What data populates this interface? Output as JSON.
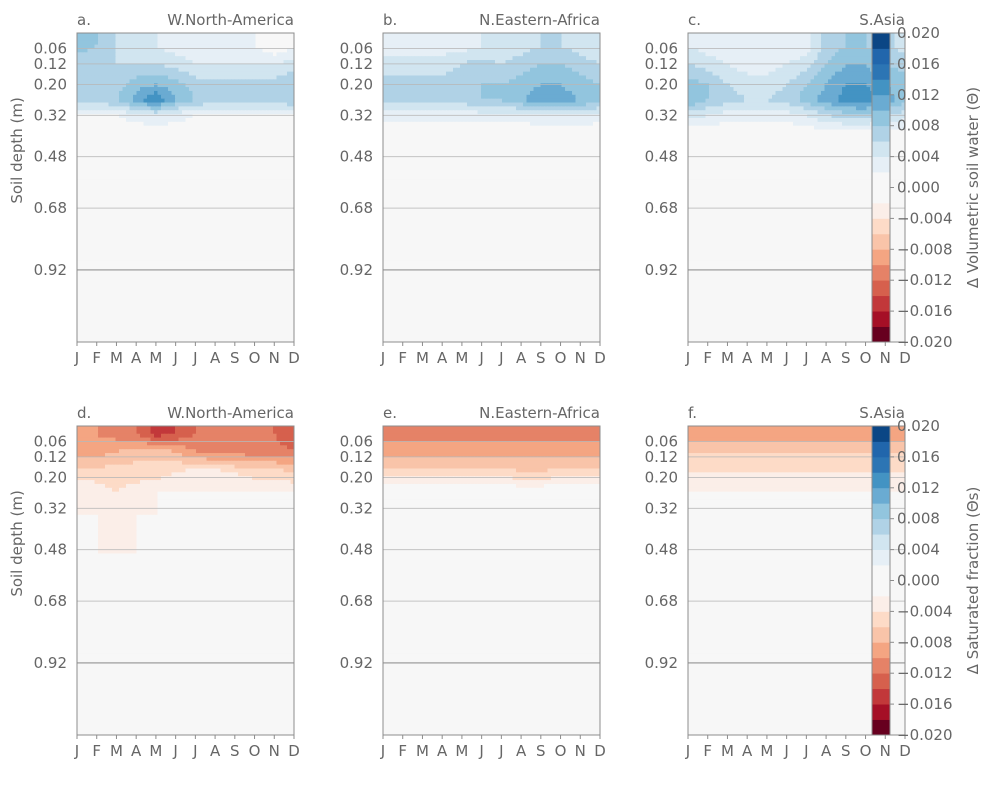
{
  "figure": {
    "months": [
      "J",
      "F",
      "M",
      "A",
      "M",
      "J",
      "J",
      "A",
      "S",
      "O",
      "N",
      "D"
    ],
    "depth_ticks": [
      0.06,
      0.12,
      0.2,
      0.32,
      0.48,
      0.68,
      0.92
    ],
    "depth_tick_labels": [
      "0.06",
      "0.12",
      "0.20",
      "0.32",
      "0.48",
      "0.68",
      "0.92"
    ],
    "ylabel": "Soil depth (m)",
    "colorbars": [
      {
        "label": "Δ Volumetric soil water (Θ)",
        "range": [
          -0.02,
          0.02
        ],
        "levels": [
          -0.02,
          -0.018,
          -0.016,
          -0.014,
          -0.012,
          -0.01,
          -0.008,
          -0.006,
          -0.004,
          -0.002,
          0,
          0.002,
          0.004,
          0.006,
          0.008,
          0.01,
          0.012,
          0.014,
          0.016,
          0.018,
          0.02
        ],
        "tick_values": [
          -0.02,
          -0.016,
          -0.012,
          -0.008,
          -0.004,
          0.0,
          0.004,
          0.008,
          0.012,
          0.016,
          0.02
        ],
        "tick_labels": [
          "−0.020",
          "−0.016",
          "−0.012",
          "−0.008",
          "−0.004",
          "0.000",
          "0.004",
          "0.008",
          "0.012",
          "0.016",
          "0.020"
        ]
      },
      {
        "label": "Δ Saturated fraction (Θs)",
        "range": [
          -0.02,
          0.02
        ],
        "levels": [
          -0.02,
          -0.018,
          -0.016,
          -0.014,
          -0.012,
          -0.01,
          -0.008,
          -0.006,
          -0.004,
          -0.002,
          0,
          0.002,
          0.004,
          0.006,
          0.008,
          0.01,
          0.012,
          0.014,
          0.016,
          0.018,
          0.02
        ],
        "tick_values": [
          -0.02,
          -0.016,
          -0.012,
          -0.008,
          -0.004,
          0.0,
          0.004,
          0.008,
          0.012,
          0.016,
          0.02
        ],
        "tick_labels": [
          "−0.020",
          "−0.016",
          "−0.012",
          "−0.008",
          "−0.004",
          "0.000",
          "0.004",
          "0.008",
          "0.012",
          "0.016",
          "0.020"
        ]
      }
    ],
    "colors": [
      "#67001f",
      "#a50f26",
      "#c2383a",
      "#d6604d",
      "#e58267",
      "#f4a582",
      "#f9c4a9",
      "#fddbc7",
      "#fbeee8",
      "#f7f7f7",
      "#f7f7f7",
      "#e6eff6",
      "#d1e5f0",
      "#b0d2e6",
      "#92c5de",
      "#6aabd2",
      "#4393c3",
      "#2c75b4",
      "#2166ac",
      "#0b4685"
    ]
  },
  "chart_data": [
    {
      "type": "heatmap",
      "panel": "a.",
      "region": "W.North-America",
      "variable": "Δ Volumetric soil water (Θ)",
      "x": [
        "J",
        "F",
        "M",
        "A",
        "M",
        "J",
        "J",
        "A",
        "S",
        "O",
        "N",
        "D"
      ],
      "y": [
        0.05,
        0.12,
        0.2,
        0.26,
        0.32,
        0.4,
        0.6,
        0.92,
        1.2
      ],
      "z": [
        [
          0.009,
          0.008,
          0.006,
          0.004,
          0.004,
          0.003,
          0.003,
          0.003,
          0.003,
          0.002,
          0.0,
          0.002
        ],
        [
          0.007,
          0.006,
          0.006,
          0.006,
          0.006,
          0.005,
          0.004,
          0.004,
          0.004,
          0.004,
          0.004,
          0.005
        ],
        [
          0.007,
          0.007,
          0.007,
          0.009,
          0.01,
          0.009,
          0.007,
          0.007,
          0.007,
          0.007,
          0.007,
          0.008
        ],
        [
          0.007,
          0.007,
          0.008,
          0.011,
          0.014,
          0.01,
          0.008,
          0.007,
          0.007,
          0.007,
          0.007,
          0.008
        ],
        [
          0.002,
          0.002,
          0.002,
          0.003,
          0.004,
          0.003,
          0.002,
          0.002,
          0.002,
          0.002,
          0.002,
          0.002
        ],
        [
          0.0,
          0.0,
          0.0,
          0.0,
          0.0,
          0.0,
          0.0,
          0.0,
          0.0,
          0.0,
          0.0,
          0.0
        ],
        [
          0.0,
          0.0,
          0.0,
          0.0,
          0.0,
          0.0,
          0.0,
          0.0,
          0.0,
          0.0,
          0.0,
          0.0
        ],
        [
          0.0,
          0.0,
          0.0,
          0.0,
          0.0,
          0.0,
          0.0,
          0.0,
          0.0,
          0.0,
          0.0,
          0.0
        ],
        [
          0.0,
          0.0,
          0.0,
          0.0,
          0.0,
          0.0,
          0.0,
          0.0,
          0.0,
          0.0,
          0.0,
          0.0
        ]
      ]
    },
    {
      "type": "heatmap",
      "panel": "b.",
      "region": "N.Eastern-Africa",
      "variable": "Δ Volumetric soil water (Θ)",
      "x": [
        "J",
        "F",
        "M",
        "A",
        "M",
        "J",
        "J",
        "A",
        "S",
        "O",
        "N",
        "D"
      ],
      "y": [
        0.05,
        0.12,
        0.2,
        0.26,
        0.32,
        0.4,
        0.6,
        0.92,
        1.2
      ],
      "z": [
        [
          0.003,
          0.003,
          0.003,
          0.003,
          0.003,
          0.004,
          0.004,
          0.005,
          0.006,
          0.006,
          0.005,
          0.004
        ],
        [
          0.005,
          0.005,
          0.005,
          0.005,
          0.006,
          0.007,
          0.006,
          0.007,
          0.008,
          0.008,
          0.007,
          0.006
        ],
        [
          0.007,
          0.007,
          0.007,
          0.007,
          0.007,
          0.008,
          0.008,
          0.009,
          0.01,
          0.01,
          0.009,
          0.008
        ],
        [
          0.007,
          0.007,
          0.007,
          0.007,
          0.007,
          0.008,
          0.008,
          0.01,
          0.011,
          0.011,
          0.01,
          0.009
        ],
        [
          0.003,
          0.003,
          0.003,
          0.003,
          0.003,
          0.003,
          0.003,
          0.003,
          0.004,
          0.004,
          0.004,
          0.003
        ],
        [
          0.0,
          0.0,
          0.0,
          0.0,
          0.0,
          0.0,
          0.0,
          0.0,
          0.0,
          0.0,
          0.0,
          0.0
        ],
        [
          0.0,
          0.0,
          0.0,
          0.0,
          0.0,
          0.0,
          0.0,
          0.0,
          0.0,
          0.0,
          0.0,
          0.0
        ],
        [
          0.0,
          0.0,
          0.0,
          0.0,
          0.0,
          0.0,
          0.0,
          0.0,
          0.0,
          0.0,
          0.0,
          0.0
        ],
        [
          0.0,
          0.0,
          0.0,
          0.0,
          0.0,
          0.0,
          0.0,
          0.0,
          0.0,
          0.0,
          0.0,
          0.0
        ]
      ]
    },
    {
      "type": "heatmap",
      "panel": "c.",
      "region": "S.Asia",
      "variable": "Δ Volumetric soil water (Θ)",
      "x": [
        "J",
        "F",
        "M",
        "A",
        "M",
        "J",
        "J",
        "A",
        "S",
        "O",
        "N",
        "D"
      ],
      "y": [
        0.05,
        0.12,
        0.2,
        0.26,
        0.32,
        0.4,
        0.6,
        0.92,
        1.2
      ],
      "z": [
        [
          0.004,
          0.003,
          0.002,
          0.002,
          0.002,
          0.002,
          0.003,
          0.007,
          0.008,
          0.008,
          0.007,
          0.005
        ],
        [
          0.006,
          0.005,
          0.004,
          0.003,
          0.003,
          0.004,
          0.005,
          0.008,
          0.01,
          0.01,
          0.008,
          0.007
        ],
        [
          0.009,
          0.008,
          0.006,
          0.005,
          0.005,
          0.006,
          0.008,
          0.01,
          0.012,
          0.012,
          0.01,
          0.009
        ],
        [
          0.01,
          0.008,
          0.007,
          0.006,
          0.006,
          0.007,
          0.009,
          0.011,
          0.013,
          0.014,
          0.011,
          0.009
        ],
        [
          0.005,
          0.004,
          0.003,
          0.003,
          0.003,
          0.003,
          0.004,
          0.006,
          0.007,
          0.007,
          0.006,
          0.005
        ],
        [
          0.0,
          0.0,
          0.0,
          0.0,
          0.0,
          0.0,
          0.0,
          0.0,
          0.0,
          0.0,
          0.0,
          0.0
        ],
        [
          0.0,
          0.0,
          0.0,
          0.0,
          0.0,
          0.0,
          0.0,
          0.0,
          0.0,
          0.0,
          0.0,
          0.0
        ],
        [
          0.0,
          0.0,
          0.0,
          0.0,
          0.0,
          0.0,
          0.0,
          0.0,
          0.0,
          0.0,
          0.0,
          0.0
        ],
        [
          0.0,
          0.0,
          0.0,
          0.0,
          0.0,
          0.0,
          0.0,
          0.0,
          0.0,
          0.0,
          0.0,
          0.0
        ]
      ]
    },
    {
      "type": "heatmap",
      "panel": "d.",
      "region": "W.North-America",
      "variable": "Δ Saturated fraction (Θs)",
      "x": [
        "J",
        "F",
        "M",
        "A",
        "M",
        "J",
        "J",
        "A",
        "S",
        "O",
        "N",
        "D"
      ],
      "y": [
        0.03,
        0.1,
        0.18,
        0.26,
        0.34,
        0.5,
        0.92,
        1.2
      ],
      "z": [
        [
          -0.01,
          -0.01,
          -0.011,
          -0.012,
          -0.015,
          -0.014,
          -0.012,
          -0.011,
          -0.01,
          -0.011,
          -0.012,
          -0.014
        ],
        [
          -0.009,
          -0.009,
          -0.008,
          -0.007,
          -0.007,
          -0.008,
          -0.01,
          -0.011,
          -0.011,
          -0.011,
          -0.011,
          -0.012
        ],
        [
          -0.005,
          -0.005,
          -0.005,
          -0.005,
          -0.005,
          -0.004,
          -0.003,
          -0.003,
          -0.004,
          -0.005,
          -0.005,
          -0.006
        ],
        [
          -0.002,
          -0.003,
          -0.004,
          -0.003,
          -0.002,
          -0.002,
          -0.002,
          -0.002,
          -0.002,
          -0.002,
          -0.002,
          -0.002
        ],
        [
          -0.002,
          -0.002,
          -0.003,
          -0.002,
          -0.002,
          -0.002,
          -0.002,
          -0.002,
          -0.002,
          -0.002,
          -0.002,
          -0.002
        ],
        [
          -0.002,
          -0.002,
          -0.002,
          -0.002,
          -0.002,
          -0.002,
          -0.002,
          -0.002,
          -0.002,
          -0.002,
          -0.002,
          -0.002
        ],
        [
          -0.002,
          -0.002,
          -0.002,
          -0.002,
          -0.002,
          -0.002,
          -0.002,
          -0.002,
          -0.002,
          -0.002,
          -0.002,
          -0.002
        ],
        [
          -0.002,
          -0.002,
          -0.002,
          -0.002,
          -0.002,
          -0.002,
          -0.002,
          -0.002,
          -0.002,
          -0.002,
          -0.002,
          -0.002
        ]
      ]
    },
    {
      "type": "heatmap",
      "panel": "e.",
      "region": "N.Eastern-Africa",
      "variable": "Δ Saturated fraction (Θs)",
      "x": [
        "J",
        "F",
        "M",
        "A",
        "M",
        "J",
        "J",
        "A",
        "S",
        "O",
        "N",
        "D"
      ],
      "y": [
        0.03,
        0.1,
        0.18,
        0.26,
        0.34,
        0.5,
        0.92,
        1.2
      ],
      "z": [
        [
          -0.011,
          -0.011,
          -0.011,
          -0.011,
          -0.011,
          -0.011,
          -0.011,
          -0.011,
          -0.011,
          -0.011,
          -0.011,
          -0.011
        ],
        [
          -0.009,
          -0.009,
          -0.009,
          -0.009,
          -0.009,
          -0.009,
          -0.009,
          -0.009,
          -0.009,
          -0.009,
          -0.009,
          -0.009
        ],
        [
          -0.005,
          -0.005,
          -0.005,
          -0.005,
          -0.005,
          -0.005,
          -0.005,
          -0.006,
          -0.006,
          -0.005,
          -0.005,
          -0.005
        ],
        [
          0.0,
          0.0,
          0.0,
          0.0,
          0.0,
          0.0,
          0.0,
          0.0,
          0.0,
          0.0,
          0.0,
          0.0
        ],
        [
          0.0,
          0.0,
          0.0,
          0.0,
          0.0,
          0.0,
          0.0,
          0.0,
          0.0,
          0.0,
          0.0,
          0.0
        ],
        [
          0.0,
          0.0,
          0.0,
          0.0,
          0.0,
          0.0,
          0.0,
          0.0,
          0.0,
          0.0,
          0.0,
          0.0
        ],
        [
          0.0,
          0.0,
          0.0,
          0.0,
          0.0,
          0.0,
          0.0,
          0.0,
          0.0,
          0.0,
          0.0,
          0.0
        ],
        [
          0.0,
          0.0,
          0.0,
          0.0,
          0.0,
          0.0,
          0.0,
          0.0,
          0.0,
          0.0,
          0.0,
          0.0
        ]
      ]
    },
    {
      "type": "heatmap",
      "panel": "f.",
      "region": "S.Asia",
      "variable": "Δ Saturated fraction (Θs)",
      "x": [
        "J",
        "F",
        "M",
        "A",
        "M",
        "J",
        "J",
        "A",
        "S",
        "O",
        "N",
        "D"
      ],
      "y": [
        0.03,
        0.1,
        0.18,
        0.26,
        0.34,
        0.5,
        0.92,
        1.2
      ],
      "z": [
        [
          -0.01,
          -0.009,
          -0.009,
          -0.009,
          -0.009,
          -0.009,
          -0.009,
          -0.009,
          -0.01,
          -0.01,
          -0.009,
          -0.009
        ],
        [
          -0.006,
          -0.006,
          -0.006,
          -0.006,
          -0.006,
          -0.006,
          -0.006,
          -0.006,
          -0.006,
          -0.006,
          -0.006,
          -0.006
        ],
        [
          -0.004,
          -0.004,
          -0.004,
          -0.004,
          -0.004,
          -0.004,
          -0.004,
          -0.004,
          -0.004,
          -0.004,
          -0.004,
          -0.004
        ],
        [
          -0.002,
          -0.002,
          -0.002,
          -0.002,
          -0.002,
          -0.002,
          -0.002,
          -0.002,
          -0.002,
          -0.002,
          -0.002,
          -0.002
        ],
        [
          -0.002,
          -0.002,
          -0.002,
          -0.002,
          -0.002,
          -0.002,
          -0.002,
          -0.002,
          -0.002,
          -0.002,
          -0.002,
          -0.002
        ],
        [
          -0.002,
          -0.002,
          -0.002,
          -0.002,
          -0.002,
          -0.002,
          -0.002,
          -0.002,
          -0.002,
          -0.002,
          -0.002,
          -0.002
        ],
        [
          -0.002,
          -0.002,
          -0.002,
          -0.002,
          -0.002,
          -0.002,
          -0.002,
          -0.002,
          -0.002,
          -0.002,
          -0.002,
          -0.002
        ],
        [
          -0.002,
          -0.002,
          -0.002,
          -0.002,
          -0.002,
          -0.002,
          -0.002,
          -0.002,
          -0.002,
          -0.002,
          -0.002,
          -0.002
        ]
      ]
    }
  ]
}
